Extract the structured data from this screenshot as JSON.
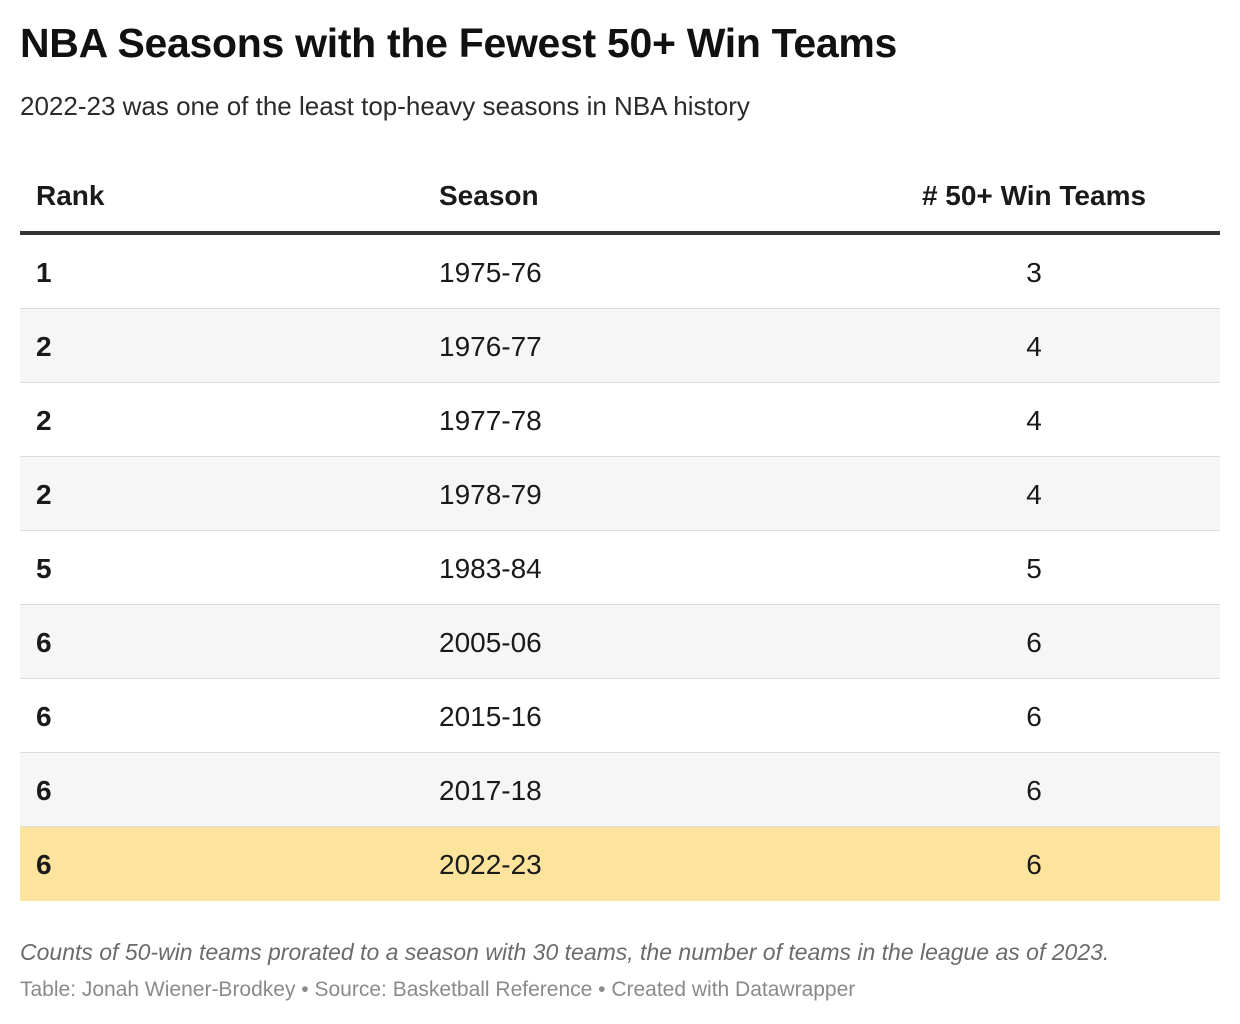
{
  "title": "NBA Seasons with the Fewest 50+ Win Teams",
  "subtitle": "2022-23 was one of the least top-heavy seasons in NBA history",
  "colors": {
    "highlight_row": "#fde49d",
    "alt_row": "#f6f6f6",
    "header_rule": "#333333"
  },
  "chart_data": {
    "type": "table",
    "columns": [
      "Rank",
      "Season",
      "# 50+ Win Teams"
    ],
    "rows": [
      {
        "rank": "1",
        "season": "1975-76",
        "count": "3"
      },
      {
        "rank": "2",
        "season": "1976-77",
        "count": "4"
      },
      {
        "rank": "2",
        "season": "1977-78",
        "count": "4"
      },
      {
        "rank": "2",
        "season": "1978-79",
        "count": "4"
      },
      {
        "rank": "5",
        "season": "1983-84",
        "count": "5"
      },
      {
        "rank": "6",
        "season": "2005-06",
        "count": "6"
      },
      {
        "rank": "6",
        "season": "2015-16",
        "count": "6"
      },
      {
        "rank": "6",
        "season": "2017-18",
        "count": "6"
      },
      {
        "rank": "6",
        "season": "2022-23",
        "count": "6"
      }
    ],
    "highlighted_season": "2022-23"
  },
  "note": "Counts of 50-win teams prorated to a season with 30 teams, the number of teams in the league as of 2023.",
  "credits": "Table: Jonah Wiener-Brodkey • Source: Basketball Reference • Created with Datawrapper"
}
